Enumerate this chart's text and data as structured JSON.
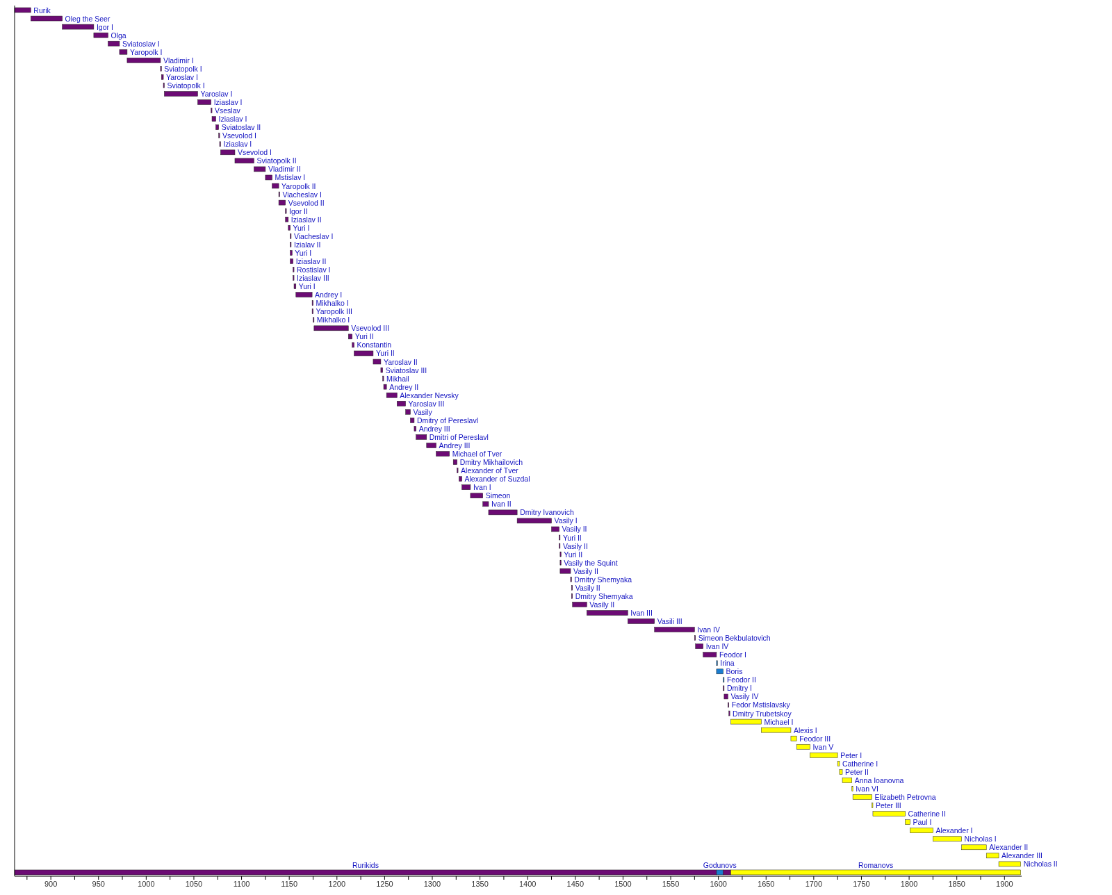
{
  "chart_data": {
    "type": "bar",
    "orientation": "horizontal",
    "categories": [
      "Rurik",
      "Oleg the Seer",
      "Igor I",
      "Olga",
      "Sviatoslav I",
      "Yaropolk I",
      "Vladimir I",
      "Sviatopolk I",
      "Yaroslav I",
      "Sviatopolk I",
      "Yaroslav I",
      "Iziaslav I",
      "Vseslav",
      "Iziaslav I",
      "Sviatoslav II",
      "Vsevolod I",
      "Iziaslav I",
      "Vsevolod I",
      "Sviatopolk II",
      "Vladimir II",
      "Mstislav I",
      "Yaropolk II",
      "Viacheslav I",
      "Vsevolod II",
      "Igor II",
      "Iziaslav II",
      "Yuri I",
      "Viacheslav I",
      "Izialav II",
      "Yuri I",
      "Iziaslav II",
      "Rostislav I",
      "Iziaslav III",
      "Yuri I",
      "Andrey I",
      "Mikhalko I",
      "Yaropolk III",
      "Mikhalko I",
      "Vsevolod III",
      "Yuri II",
      "Konstantin",
      "Yuri II",
      "Yaroslav II",
      "Sviatoslav III",
      "Mikhail",
      "Andrey II",
      "Alexander Nevsky",
      "Yaroslav III",
      "Vasily",
      "Dmitry of Pereslavl",
      "Andrey III",
      "Dmitri of Pereslavl",
      "Andrey III",
      "Michael of Tver",
      "Dmitry Mikhailovich",
      "Alexander of Tver",
      "Alexander of Suzdal",
      "Ivan I",
      "Simeon",
      "Ivan II",
      "Dmitry Ivanovich",
      "Vasily I",
      "Vasily II",
      "Yuri II",
      "Vasily II",
      "Yuri II",
      "Vasily the Squint",
      "Vasily II",
      "Dmitry Shemyaka",
      "Vasily II",
      "Dmitry Shemyaka",
      "Vasily II",
      "Ivan III",
      "Vasili III",
      "Ivan IV",
      "Simeon Bekbulatovich",
      "Ivan IV",
      "Feodor I",
      "Irina",
      "Boris",
      "Feodor II",
      "Dmitry I",
      "Vasily IV",
      "Fedor Mstislavsky",
      "Dmitry Trubetskoy",
      "Michael I",
      "Alexis I",
      "Feodor III",
      "Ivan V",
      "Peter I",
      "Catherine I",
      "Peter II",
      "Anna Ioanovna",
      "Ivan VI",
      "Elizabeth Petrovna",
      "Peter III",
      "Catherine II",
      "Paul I",
      "Alexander I",
      "Nicholas I",
      "Alexander II",
      "Alexander III",
      "Nicholas II",
      null
    ],
    "series": [
      {
        "base": [
          862,
          879,
          912,
          945,
          960,
          972,
          980,
          1015,
          1016,
          1018,
          1019,
          1054,
          1068,
          1069,
          1073,
          1076,
          1077,
          1078,
          1093,
          1113,
          1125,
          1132,
          1139,
          1139,
          1146,
          1146,
          1149,
          1151,
          1151,
          1151,
          1151,
          1154,
          1154,
          1155,
          1157,
          1174,
          1174,
          1175,
          1176,
          1212,
          1216,
          1218,
          1238,
          1246,
          1248,
          1249,
          1252,
          1263,
          1272,
          1277,
          1281,
          1283,
          1294,
          1304,
          1322,
          1326,
          1328,
          1331,
          1340,
          1353,
          1359,
          1389,
          1425,
          1433,
          1433,
          1434,
          1434,
          1434,
          1445,
          1446,
          1446,
          1447,
          1462,
          1505,
          1533,
          1575,
          1576,
          1584,
          1598,
          1598,
          1605,
          1605,
          1606,
          1610,
          1611,
          1613,
          1645,
          1676,
          1682,
          1696,
          1725,
          1727,
          1730,
          1740,
          1741,
          1761,
          1762,
          1796,
          1801,
          1825,
          1855,
          1881,
          1894,
          null
        ],
        "values": [
          17,
          33,
          33,
          15,
          12,
          8,
          35,
          1,
          2,
          1,
          35,
          14,
          1,
          4,
          3,
          1,
          1,
          15,
          20,
          12,
          7,
          7,
          1,
          7,
          1,
          3,
          2,
          1,
          1,
          2,
          3,
          1,
          1,
          2,
          17,
          1,
          1,
          1,
          36,
          4,
          2,
          20,
          8,
          2,
          1,
          3,
          11,
          9,
          5,
          4,
          2,
          11,
          10,
          14,
          4,
          1,
          3,
          9,
          13,
          6,
          30,
          36,
          8,
          1,
          1,
          1,
          1,
          11,
          1,
          1,
          1,
          15,
          43,
          28,
          42,
          1,
          8,
          14,
          1,
          7,
          1,
          1,
          4,
          1,
          1,
          32,
          31,
          6,
          14,
          29,
          2,
          3,
          10,
          1,
          20,
          1,
          34,
          5,
          24,
          30,
          26,
          13,
          23,
          null
        ],
        "colors": [
          "#6c0b74",
          "#6c0b74",
          "#6c0b74",
          "#6c0b74",
          "#6c0b74",
          "#6c0b74",
          "#6c0b74",
          "#6c0b74",
          "#6c0b74",
          "#6c0b74",
          "#6c0b74",
          "#6c0b74",
          "#6c0b74",
          "#6c0b74",
          "#6c0b74",
          "#6c0b74",
          "#6c0b74",
          "#6c0b74",
          "#6c0b74",
          "#6c0b74",
          "#6c0b74",
          "#6c0b74",
          "#6c0b74",
          "#6c0b74",
          "#6c0b74",
          "#6c0b74",
          "#6c0b74",
          "#6c0b74",
          "#6c0b74",
          "#6c0b74",
          "#6c0b74",
          "#6c0b74",
          "#6c0b74",
          "#6c0b74",
          "#6c0b74",
          "#6c0b74",
          "#6c0b74",
          "#6c0b74",
          "#6c0b74",
          "#6c0b74",
          "#6c0b74",
          "#6c0b74",
          "#6c0b74",
          "#6c0b74",
          "#6c0b74",
          "#6c0b74",
          "#6c0b74",
          "#6c0b74",
          "#6c0b74",
          "#6c0b74",
          "#6c0b74",
          "#6c0b74",
          "#6c0b74",
          "#6c0b74",
          "#6c0b74",
          "#6c0b74",
          "#6c0b74",
          "#6c0b74",
          "#6c0b74",
          "#6c0b74",
          "#6c0b74",
          "#6c0b74",
          "#6c0b74",
          "#6c0b74",
          "#6c0b74",
          "#6c0b74",
          "#6c0b74",
          "#6c0b74",
          "#6c0b74",
          "#6c0b74",
          "#6c0b74",
          "#6c0b74",
          "#6c0b74",
          "#6c0b74",
          "#6c0b74",
          "#6c0b74",
          "#6c0b74",
          "#6c0b74",
          "#1a7dd0",
          "#1a7dd0",
          "#1a7dd0",
          "#6c0b74",
          "#6c0b74",
          "#6c0b74",
          "#6c0b74",
          "#ffff00",
          "#ffff00",
          "#ffff00",
          "#ffff00",
          "#ffff00",
          "#ffff00",
          "#ffff00",
          "#ffff00",
          "#ffff00",
          "#ffff00",
          "#ffff00",
          "#ffff00",
          "#ffff00",
          "#ffff00",
          "#ffff00",
          "#ffff00",
          "#ffff00",
          "#ffff00",
          null
        ]
      },
      {
        "name": "Rurikids",
        "color": "#6c0b74",
        "base": [
          null,
          null,
          null,
          null,
          null,
          null,
          null,
          null,
          null,
          null,
          null,
          null,
          null,
          null,
          null,
          null,
          null,
          null,
          null,
          null,
          null,
          null,
          null,
          null,
          null,
          null,
          null,
          null,
          null,
          null,
          null,
          null,
          null,
          null,
          null,
          null,
          null,
          null,
          null,
          null,
          null,
          null,
          null,
          null,
          null,
          null,
          null,
          null,
          null,
          null,
          null,
          null,
          null,
          null,
          null,
          null,
          null,
          null,
          null,
          null,
          null,
          null,
          null,
          null,
          null,
          null,
          null,
          null,
          null,
          null,
          null,
          null,
          null,
          null,
          null,
          null,
          null,
          null,
          null,
          null,
          null,
          null,
          null,
          null,
          null,
          null,
          null,
          null,
          null,
          null,
          null,
          null,
          null,
          null,
          null,
          null,
          null,
          null,
          null,
          null,
          null,
          null,
          null,
          862
        ],
        "values": [
          null,
          null,
          null,
          null,
          null,
          null,
          null,
          null,
          null,
          null,
          null,
          null,
          null,
          null,
          null,
          null,
          null,
          null,
          null,
          null,
          null,
          null,
          null,
          null,
          null,
          null,
          null,
          null,
          null,
          null,
          null,
          null,
          null,
          null,
          null,
          null,
          null,
          null,
          null,
          null,
          null,
          null,
          null,
          null,
          null,
          null,
          null,
          null,
          null,
          null,
          null,
          null,
          null,
          null,
          null,
          null,
          null,
          null,
          null,
          null,
          null,
          null,
          null,
          null,
          null,
          null,
          null,
          null,
          null,
          null,
          null,
          null,
          null,
          null,
          null,
          null,
          null,
          null,
          null,
          null,
          null,
          null,
          null,
          null,
          null,
          null,
          null,
          null,
          null,
          null,
          null,
          null,
          null,
          null,
          null,
          null,
          null,
          null,
          null,
          null,
          null,
          null,
          null,
          736
        ]
      },
      {
        "name": "Godunovs",
        "color": "#1a7dd0",
        "base": [
          null,
          null,
          null,
          null,
          null,
          null,
          null,
          null,
          null,
          null,
          null,
          null,
          null,
          null,
          null,
          null,
          null,
          null,
          null,
          null,
          null,
          null,
          null,
          null,
          null,
          null,
          null,
          null,
          null,
          null,
          null,
          null,
          null,
          null,
          null,
          null,
          null,
          null,
          null,
          null,
          null,
          null,
          null,
          null,
          null,
          null,
          null,
          null,
          null,
          null,
          null,
          null,
          null,
          null,
          null,
          null,
          null,
          null,
          null,
          null,
          null,
          null,
          null,
          null,
          null,
          null,
          null,
          null,
          null,
          null,
          null,
          null,
          null,
          null,
          null,
          null,
          null,
          null,
          null,
          null,
          null,
          null,
          null,
          null,
          null,
          null,
          null,
          null,
          null,
          null,
          null,
          null,
          null,
          null,
          null,
          null,
          null,
          null,
          null,
          null,
          null,
          null,
          null,
          1598
        ],
        "values": [
          null,
          null,
          null,
          null,
          null,
          null,
          null,
          null,
          null,
          null,
          null,
          null,
          null,
          null,
          null,
          null,
          null,
          null,
          null,
          null,
          null,
          null,
          null,
          null,
          null,
          null,
          null,
          null,
          null,
          null,
          null,
          null,
          null,
          null,
          null,
          null,
          null,
          null,
          null,
          null,
          null,
          null,
          null,
          null,
          null,
          null,
          null,
          null,
          null,
          null,
          null,
          null,
          null,
          null,
          null,
          null,
          null,
          null,
          null,
          null,
          null,
          null,
          null,
          null,
          null,
          null,
          null,
          null,
          null,
          null,
          null,
          null,
          null,
          null,
          null,
          null,
          null,
          null,
          null,
          null,
          null,
          null,
          null,
          null,
          null,
          null,
          null,
          null,
          null,
          null,
          null,
          null,
          null,
          null,
          null,
          null,
          null,
          null,
          null,
          null,
          null,
          null,
          null,
          7
        ]
      },
      {
        "color": "#6c0b74",
        "base": [
          null,
          null,
          null,
          null,
          null,
          null,
          null,
          null,
          null,
          null,
          null,
          null,
          null,
          null,
          null,
          null,
          null,
          null,
          null,
          null,
          null,
          null,
          null,
          null,
          null,
          null,
          null,
          null,
          null,
          null,
          null,
          null,
          null,
          null,
          null,
          null,
          null,
          null,
          null,
          null,
          null,
          null,
          null,
          null,
          null,
          null,
          null,
          null,
          null,
          null,
          null,
          null,
          null,
          null,
          null,
          null,
          null,
          null,
          null,
          null,
          null,
          null,
          null,
          null,
          null,
          null,
          null,
          null,
          null,
          null,
          null,
          null,
          null,
          null,
          null,
          null,
          null,
          null,
          null,
          null,
          null,
          null,
          null,
          null,
          null,
          null,
          null,
          null,
          null,
          null,
          null,
          null,
          null,
          null,
          null,
          null,
          null,
          null,
          null,
          null,
          null,
          null,
          null,
          1605
        ],
        "values": [
          null,
          null,
          null,
          null,
          null,
          null,
          null,
          null,
          null,
          null,
          null,
          null,
          null,
          null,
          null,
          null,
          null,
          null,
          null,
          null,
          null,
          null,
          null,
          null,
          null,
          null,
          null,
          null,
          null,
          null,
          null,
          null,
          null,
          null,
          null,
          null,
          null,
          null,
          null,
          null,
          null,
          null,
          null,
          null,
          null,
          null,
          null,
          null,
          null,
          null,
          null,
          null,
          null,
          null,
          null,
          null,
          null,
          null,
          null,
          null,
          null,
          null,
          null,
          null,
          null,
          null,
          null,
          null,
          null,
          null,
          null,
          null,
          null,
          null,
          null,
          null,
          null,
          null,
          null,
          null,
          null,
          null,
          null,
          null,
          null,
          null,
          null,
          null,
          null,
          null,
          null,
          null,
          null,
          null,
          null,
          null,
          null,
          null,
          null,
          null,
          null,
          null,
          null,
          8
        ]
      },
      {
        "name": "Romanovs",
        "color": "#ffff00",
        "base": [
          null,
          null,
          null,
          null,
          null,
          null,
          null,
          null,
          null,
          null,
          null,
          null,
          null,
          null,
          null,
          null,
          null,
          null,
          null,
          null,
          null,
          null,
          null,
          null,
          null,
          null,
          null,
          null,
          null,
          null,
          null,
          null,
          null,
          null,
          null,
          null,
          null,
          null,
          null,
          null,
          null,
          null,
          null,
          null,
          null,
          null,
          null,
          null,
          null,
          null,
          null,
          null,
          null,
          null,
          null,
          null,
          null,
          null,
          null,
          null,
          null,
          null,
          null,
          null,
          null,
          null,
          null,
          null,
          null,
          null,
          null,
          null,
          null,
          null,
          null,
          null,
          null,
          null,
          null,
          null,
          null,
          null,
          null,
          null,
          null,
          null,
          null,
          null,
          null,
          null,
          null,
          null,
          null,
          null,
          null,
          null,
          null,
          null,
          null,
          null,
          null,
          null,
          null,
          1613
        ],
        "values": [
          null,
          null,
          null,
          null,
          null,
          null,
          null,
          null,
          null,
          null,
          null,
          null,
          null,
          null,
          null,
          null,
          null,
          null,
          null,
          null,
          null,
          null,
          null,
          null,
          null,
          null,
          null,
          null,
          null,
          null,
          null,
          null,
          null,
          null,
          null,
          null,
          null,
          null,
          null,
          null,
          null,
          null,
          null,
          null,
          null,
          null,
          null,
          null,
          null,
          null,
          null,
          null,
          null,
          null,
          null,
          null,
          null,
          null,
          null,
          null,
          null,
          null,
          null,
          null,
          null,
          null,
          null,
          null,
          null,
          null,
          null,
          null,
          null,
          null,
          null,
          null,
          null,
          null,
          null,
          null,
          null,
          null,
          null,
          null,
          null,
          null,
          null,
          null,
          null,
          null,
          null,
          null,
          null,
          null,
          null,
          null,
          null,
          null,
          null,
          null,
          null,
          null,
          null,
          304
        ]
      }
    ],
    "xlim": [
      862,
      1918
    ],
    "xticks": [
      {
        "value": 875,
        "label": null
      },
      900,
      {
        "value": 925,
        "label": null
      },
      950,
      {
        "value": 975,
        "label": null
      },
      1000,
      {
        "value": 1025,
        "label": null
      },
      1050,
      {
        "value": 1075,
        "label": null
      },
      1100,
      {
        "value": 1125,
        "label": null
      },
      1150,
      {
        "value": 1175,
        "label": null
      },
      1200,
      {
        "value": 1225,
        "label": null
      },
      1250,
      {
        "value": 1275,
        "label": null
      },
      1300,
      {
        "value": 1325,
        "label": null
      },
      1350,
      {
        "value": 1375,
        "label": null
      },
      1400,
      {
        "value": 1425,
        "label": null
      },
      1450,
      {
        "value": 1475,
        "label": null
      },
      1500,
      {
        "value": 1525,
        "label": null
      },
      1550,
      {
        "value": 1575,
        "label": null
      },
      1600,
      {
        "value": 1625,
        "label": null
      },
      1650,
      {
        "value": 1675,
        "label": null
      },
      1700,
      {
        "value": 1725,
        "label": null
      },
      1750,
      {
        "value": 1775,
        "label": null
      },
      1800,
      {
        "value": 1825,
        "label": null
      },
      1850,
      {
        "value": 1875,
        "label": null
      },
      1900
    ],
    "grid": false,
    "legend": false
  }
}
